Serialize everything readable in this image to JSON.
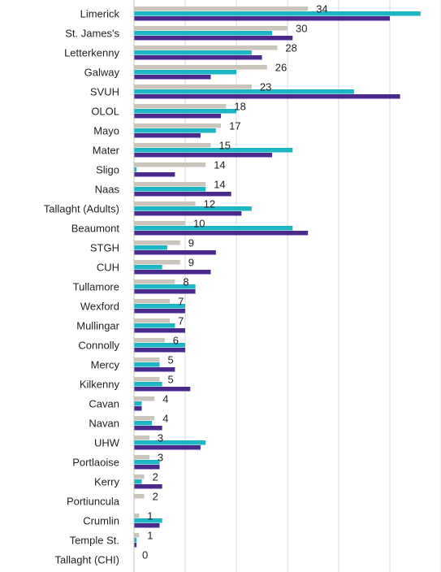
{
  "chart_data": {
    "type": "hbar",
    "categories": [
      "Limerick",
      "St. James's",
      "Letterkenny",
      "Galway",
      "SVUH",
      "OLOL",
      "Mayo",
      "Mater",
      "Sligo",
      "Naas",
      "Tallaght (Adults)",
      "Beaumont",
      "STGH",
      "CUH",
      "Tullamore",
      "Wexford",
      "Mullingar",
      "Connolly",
      "Mercy",
      "Kilkenny",
      "Cavan",
      "Navan",
      "UHW",
      "Portlaoise",
      "Kerry",
      "Portiuncula",
      "Crumlin",
      "Temple St.",
      "Tallaght (CHI)"
    ],
    "series": [
      {
        "color": "#c9c5bd",
        "values": [
          34,
          30,
          28,
          26,
          23,
          18,
          17,
          15,
          14,
          14,
          12,
          10,
          9,
          9,
          8,
          7,
          7,
          6,
          5,
          5,
          4,
          4,
          3,
          3,
          2,
          2,
          1,
          1,
          0
        ]
      },
      {
        "color": "#1db7c3",
        "values": [
          56,
          27,
          23,
          20,
          43,
          20,
          16,
          31,
          0.5,
          14,
          23,
          31,
          6.5,
          5.5,
          12,
          10,
          8,
          10,
          5,
          5.5,
          1.5,
          3.5,
          14,
          5,
          1.5,
          0,
          5.5,
          0.5,
          0
        ]
      },
      {
        "color": "#4a2a8b",
        "values": [
          50,
          31,
          25,
          15,
          52,
          17,
          13,
          27,
          8,
          19,
          21,
          34,
          16,
          15,
          12,
          10,
          10,
          10,
          8,
          11,
          1.5,
          5.5,
          13,
          5,
          5.5,
          0,
          5,
          0.5,
          0
        ]
      }
    ],
    "xlim": [
      0,
      60
    ],
    "xticks": [
      0,
      10,
      20,
      30,
      40,
      50,
      60
    ],
    "grid": true
  }
}
